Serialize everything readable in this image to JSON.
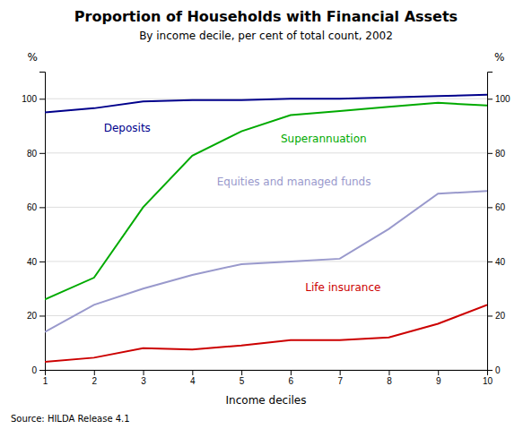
{
  "chart_data": {
    "type": "line",
    "title": "Proportion of Households with Financial Assets",
    "subtitle": "By income decile, per cent of total count, 2002",
    "source": "Source: HILDA Release 4.1",
    "xlabel": "Income deciles",
    "ylabel": "%",
    "y2label": "%",
    "x": [
      1,
      2,
      3,
      4,
      5,
      6,
      7,
      8,
      9,
      10
    ],
    "series": [
      {
        "color": "#00008B",
        "values": [
          95,
          96.5,
          99,
          99.5,
          99.5,
          100,
          100,
          100.5,
          101,
          101.5
        ]
      },
      {
        "color": "#00AA00",
        "values": [
          26,
          34,
          60,
          79,
          88,
          94,
          95.5,
          97,
          98.5,
          97.5
        ]
      },
      {
        "color": "#9999CC",
        "values": [
          14,
          24,
          30,
          35,
          39,
          40,
          41,
          52,
          65,
          66
        ]
      },
      {
        "color": "#CC0000",
        "values": [
          3,
          4.5,
          8,
          7.5,
          9,
          11,
          11,
          12,
          17,
          24
        ]
      }
    ],
    "annotations": [
      {
        "text": "Deposits",
        "x": 2.2,
        "y": 88,
        "color": "#00008B"
      },
      {
        "text": "Superannuation",
        "x": 5.8,
        "y": 84,
        "color": "#00AA00"
      },
      {
        "text": "Equities and managed funds",
        "x": 4.5,
        "y": 68,
        "color": "#9999CC"
      },
      {
        "text": "Life insurance",
        "x": 6.3,
        "y": 29,
        "color": "#CC0000"
      }
    ],
    "xlim": [
      1,
      10
    ],
    "xticks": [
      1,
      2,
      3,
      4,
      5,
      6,
      7,
      8,
      9,
      10
    ],
    "ylim": [
      0,
      110
    ],
    "yticks": [
      0,
      20,
      40,
      60,
      80,
      100
    ],
    "y2lim": [
      0,
      110
    ],
    "y2ticks": [
      0,
      20,
      40,
      60,
      80,
      100
    ],
    "grid": true
  }
}
